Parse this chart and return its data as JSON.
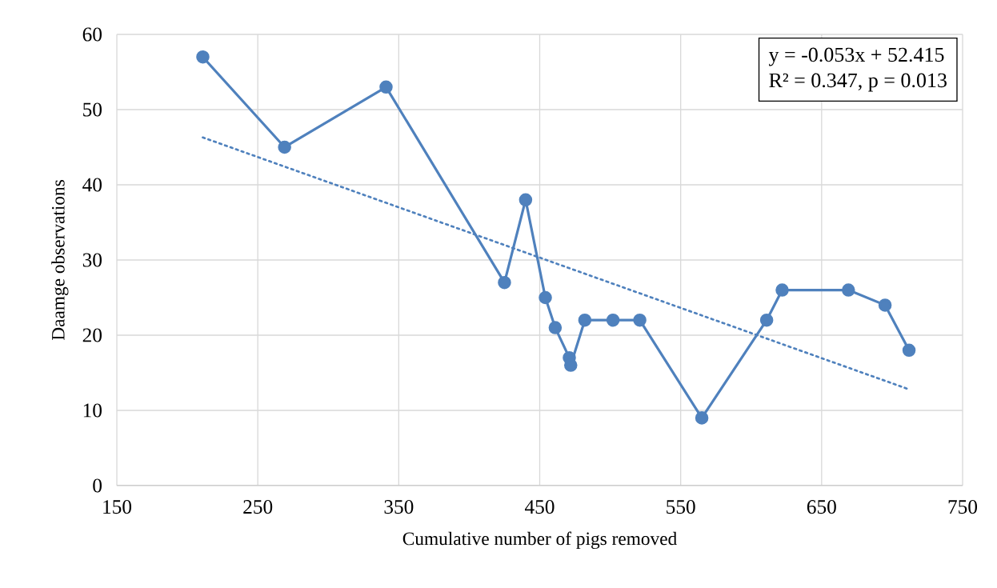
{
  "chart_data": {
    "type": "line",
    "xlabel": "Cumulative number of pigs removed",
    "ylabel": "Daamge observations",
    "annotations": [
      "y = -0.053x + 52.415",
      "R² = 0.347, p = 0.013"
    ],
    "x": [
      211,
      269,
      341,
      425,
      440,
      454,
      461,
      471,
      472,
      482,
      502,
      521,
      565,
      611,
      622,
      669,
      695,
      712
    ],
    "series": [
      {
        "color": "#4f81bd",
        "marker": "circle",
        "line_style": "solid",
        "values": [
          57,
          45,
          53,
          27,
          38,
          25,
          21,
          17,
          16,
          22,
          22,
          22,
          9,
          22,
          26,
          26,
          24,
          18
        ]
      },
      {
        "type": "line",
        "color": "#4f81bd",
        "marker": "none",
        "line_style": "dotted",
        "x": [
          211,
          712
        ],
        "values": [
          46.3,
          12.8
        ]
      }
    ],
    "xlim": [
      150,
      750
    ],
    "xticks": [
      150,
      250,
      350,
      450,
      550,
      650,
      750
    ],
    "ylim": [
      0,
      60
    ],
    "yticks": [
      0,
      10,
      20,
      30,
      40,
      50,
      60
    ],
    "grid": true
  }
}
